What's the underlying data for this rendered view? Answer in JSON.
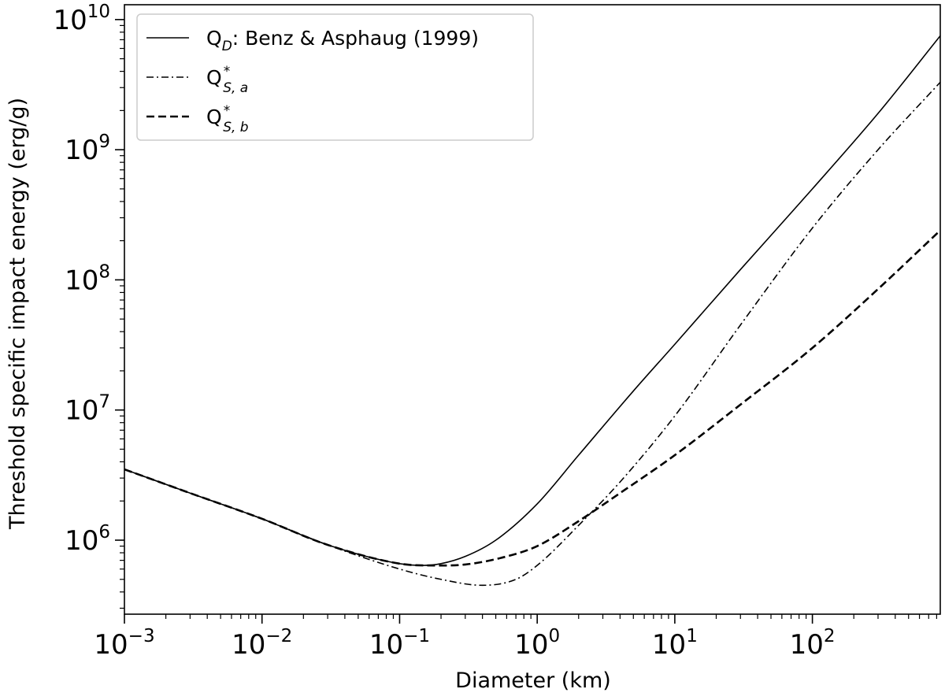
{
  "chart_data": {
    "type": "line",
    "xscale": "log",
    "yscale": "log",
    "xlabel": "Diameter (km)",
    "ylabel": "Threshold specific impact energy (erg/g)",
    "xlim": [
      0.001,
      850
    ],
    "ylim": [
      270000,
      13000000000
    ],
    "x_ticks": [
      {
        "value": 0.001,
        "base": "10",
        "exp": "−3"
      },
      {
        "value": 0.01,
        "base": "10",
        "exp": "−2"
      },
      {
        "value": 0.1,
        "base": "10",
        "exp": "−1"
      },
      {
        "value": 1,
        "base": "10",
        "exp": "0"
      },
      {
        "value": 10,
        "base": "10",
        "exp": "1"
      },
      {
        "value": 100,
        "base": "10",
        "exp": "2"
      }
    ],
    "y_ticks": [
      {
        "value": 1000000,
        "base": "10",
        "exp": "6"
      },
      {
        "value": 10000000,
        "base": "10",
        "exp": "7"
      },
      {
        "value": 100000000,
        "base": "10",
        "exp": "8"
      },
      {
        "value": 1000000000,
        "base": "10",
        "exp": "9"
      },
      {
        "value": 10000000000,
        "base": "10",
        "exp": "10"
      }
    ],
    "legend_position": "top-left",
    "series": [
      {
        "name": "QD: Benz & Asphaug (1999)",
        "legend": {
          "main": "Q",
          "sub": "D",
          "sup": "",
          "rest": ": Benz & Asphaug (1999)"
        },
        "style": "solid",
        "x": [
          0.001,
          0.003,
          0.01,
          0.03,
          0.1,
          0.15,
          0.2,
          0.3,
          0.5,
          1,
          2,
          5,
          10,
          30,
          100,
          300,
          850
        ],
        "y": [
          3500000,
          2300000,
          1460000,
          920000,
          660000,
          640000,
          660000,
          750000,
          1000000,
          1900000,
          4500000,
          14000000,
          32000000,
          120000000,
          500000000,
          1900000000,
          7500000000
        ]
      },
      {
        "name": "Q*S,a",
        "legend": {
          "main": "Q",
          "sub": "S, a",
          "sup": "*",
          "rest": ""
        },
        "style": "dashdot",
        "x": [
          0.001,
          0.003,
          0.01,
          0.03,
          0.1,
          0.2,
          0.4,
          0.7,
          1,
          2,
          4,
          10,
          30,
          100,
          300,
          850
        ],
        "y": [
          3500000,
          2300000,
          1460000,
          920000,
          600000,
          500000,
          450000,
          500000,
          640000,
          1300000,
          2800000,
          9000000,
          45000000,
          250000000,
          1000000000,
          3300000000
        ]
      },
      {
        "name": "Q*S,b",
        "legend": {
          "main": "Q",
          "sub": "S, b",
          "sup": "*",
          "rest": ""
        },
        "style": "dashed",
        "x": [
          0.001,
          0.003,
          0.01,
          0.03,
          0.1,
          0.15,
          0.3,
          0.6,
          1,
          2,
          4,
          10,
          30,
          100,
          300,
          850
        ],
        "y": [
          3500000,
          2300000,
          1460000,
          920000,
          660000,
          640000,
          650000,
          750000,
          900000,
          1400000,
          2300000,
          4500000,
          11000000,
          30000000,
          85000000,
          240000000
        ]
      }
    ]
  }
}
